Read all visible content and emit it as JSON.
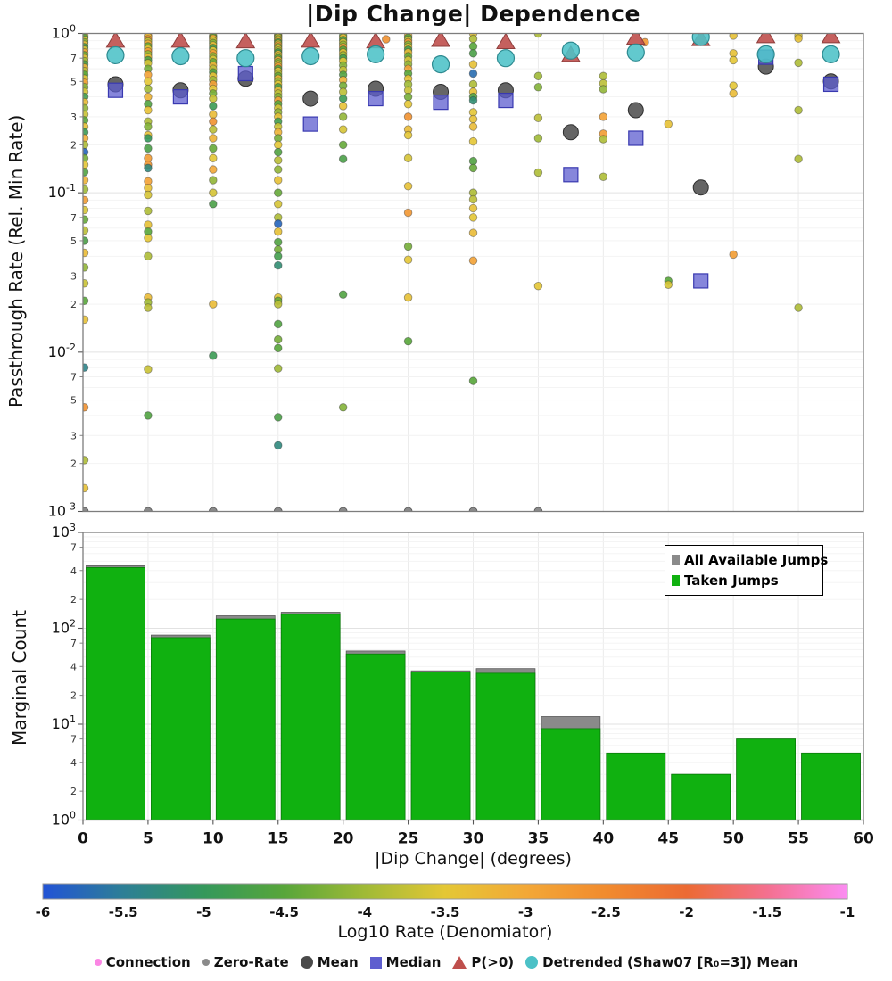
{
  "title": "|Dip Change| Dependence",
  "top_panel": {
    "ylabel": "Passthrough Rate (Rel. Min Rate)",
    "yscale": "log",
    "major_exponents": [
      0,
      -1,
      -2,
      -3
    ],
    "minor_digits": [
      7,
      5,
      3,
      2
    ]
  },
  "bottom_panel": {
    "ylabel": "Marginal Count",
    "xlabel": "|Dip Change| (degrees)",
    "yscale": "log",
    "major_exponents": [
      3,
      2,
      1,
      0
    ],
    "minor_digits": [
      7,
      4,
      2
    ],
    "xticks": [
      0,
      5,
      10,
      15,
      20,
      25,
      30,
      35,
      40,
      45,
      50,
      55,
      60
    ],
    "legend": [
      {
        "label": "All Available Jumps",
        "color": "#8a8a8a"
      },
      {
        "label": "Taken Jumps",
        "color": "#10b110"
      }
    ]
  },
  "colorbar": {
    "label": "Log10 Rate (Denomiator)",
    "min": -6,
    "max": -1,
    "ticks": [
      -6,
      -5.5,
      -5,
      -4.5,
      -4,
      -3.5,
      -3,
      -2.5,
      -2,
      -1.5,
      -1
    ],
    "stops": [
      {
        "v": -6.0,
        "color": "#2253d6"
      },
      {
        "v": -5.5,
        "color": "#2d7f96"
      },
      {
        "v": -5.0,
        "color": "#34985b"
      },
      {
        "v": -4.5,
        "color": "#58a63a"
      },
      {
        "v": -4.0,
        "color": "#a0ba36"
      },
      {
        "v": -3.5,
        "color": "#e4c735"
      },
      {
        "v": -3.0,
        "color": "#f3a837"
      },
      {
        "v": -2.5,
        "color": "#f18b2e"
      },
      {
        "v": -2.0,
        "color": "#ec6a33"
      },
      {
        "v": -1.5,
        "color": "#f4708f"
      },
      {
        "v": -1.0,
        "color": "#fb8cf2"
      }
    ]
  },
  "legend": {
    "items": [
      {
        "label": "Connection",
        "marker": "small-dot",
        "color": "#fb86e4"
      },
      {
        "label": "Zero-Rate",
        "marker": "small-dot",
        "color": "#8a8a8a"
      },
      {
        "label": "Mean",
        "marker": "circle",
        "color": "#4a4a4a"
      },
      {
        "label": "Median",
        "marker": "square",
        "color": "#5e5ecf"
      },
      {
        "label": "P(>0)",
        "marker": "triangle",
        "color": "#bf4f4c"
      },
      {
        "label": "Detrended (Shaw07 [R₀=3]) Mean",
        "marker": "circle",
        "color": "#4cc1c7"
      }
    ]
  },
  "chart_data": [
    {
      "type": "scatter",
      "title": "|Dip Change| Dependence",
      "xlabel": "|Dip Change| (degrees)",
      "ylabel": "Passthrough Rate (Rel. Min Rate)",
      "xlim": [
        0,
        60
      ],
      "ylim": [
        0.001,
        1.0
      ],
      "yscale": "log",
      "grid": true,
      "marker_colors": {
        "mean": "#4a4a4a",
        "median": "#5e5ecf",
        "p_gt0": "#bf4f4c",
        "detrended": "#4cc1c7",
        "zero_rate": "#8a8a8a"
      },
      "strips": [
        {
          "x": 0,
          "values": [
            0.97,
            0.94,
            0.91,
            0.88,
            0.85,
            0.82,
            0.79,
            0.76,
            0.73,
            0.7,
            0.67,
            0.64,
            0.61,
            0.58,
            0.55,
            0.52,
            0.49,
            0.46,
            0.43,
            0.4,
            0.37,
            0.34,
            0.31,
            0.285,
            0.26,
            0.24,
            0.22,
            0.2,
            0.18,
            0.165,
            0.15,
            0.135,
            0.12,
            0.105,
            0.09,
            0.078,
            0.068,
            0.058,
            0.05,
            0.042,
            0.034,
            0.027,
            0.021,
            0.016,
            0.008,
            0.0045,
            0.0021,
            0.0014
          ],
          "log10_rates": [
            -3.0,
            -4.6,
            -3.5,
            -4.2,
            -3.3,
            -4.8,
            -3.6,
            -2.9,
            -4.4,
            -3.4,
            -4.0,
            -4.7,
            -3.2,
            -3.8,
            -4.5,
            -3.5,
            -2.9,
            -4.2,
            -3.6,
            -4.8,
            -3.3,
            -4.1,
            -3.7,
            -4.5,
            -3.4,
            -4.9,
            -3.1,
            -3.9,
            -5.8,
            -4.3,
            -3.5,
            -4.6,
            -3.2,
            -4.0,
            -2.8,
            -3.6,
            -4.4,
            -3.8,
            -4.7,
            -3.3,
            -4.1,
            -3.7,
            -4.5,
            -3.4,
            -5.4,
            -2.6,
            -3.9,
            -3.4
          ]
        },
        {
          "x": 5,
          "values": [
            0.97,
            0.95,
            0.92,
            0.89,
            0.86,
            0.83,
            0.8,
            0.77,
            0.74,
            0.71,
            0.68,
            0.65,
            0.6,
            0.55,
            0.5,
            0.45,
            0.4,
            0.36,
            0.33,
            0.28,
            0.26,
            0.23,
            0.22,
            0.19,
            0.165,
            0.15,
            0.143,
            0.118,
            0.107,
            0.097,
            0.077,
            0.063,
            0.057,
            0.052,
            0.04,
            0.022,
            0.0205,
            0.019,
            0.0078,
            0.004
          ],
          "log10_rates": [
            -2.9,
            -3.3,
            -2.6,
            -3.8,
            -3.1,
            -4.4,
            -3.5,
            -2.8,
            -4.1,
            -3.3,
            -4.7,
            -3.6,
            -4.3,
            -2.9,
            -3.5,
            -4.0,
            -3.2,
            -4.6,
            -3.4,
            -3.9,
            -4.2,
            -3.4,
            -5.0,
            -4.7,
            -2.8,
            -2.7,
            -5.3,
            -2.9,
            -3.4,
            -3.6,
            -3.9,
            -3.4,
            -4.5,
            -3.5,
            -3.9,
            -3.3,
            -4.0,
            -3.8,
            -3.7,
            -4.6
          ]
        },
        {
          "x": 10,
          "values": [
            0.97,
            0.95,
            0.93,
            0.9,
            0.87,
            0.84,
            0.81,
            0.78,
            0.75,
            0.72,
            0.69,
            0.66,
            0.63,
            0.6,
            0.57,
            0.54,
            0.51,
            0.48,
            0.45,
            0.42,
            0.39,
            0.35,
            0.31,
            0.28,
            0.25,
            0.22,
            0.19,
            0.165,
            0.14,
            0.12,
            0.1,
            0.085,
            0.02,
            0.0095
          ],
          "log10_rates": [
            -3.4,
            -4.5,
            -3.0,
            -3.7,
            -4.2,
            -3.3,
            -4.8,
            -3.5,
            -2.9,
            -4.1,
            -3.6,
            -4.4,
            -3.2,
            -3.8,
            -4.6,
            -3.4,
            -4.0,
            -2.8,
            -3.5,
            -4.3,
            -3.7,
            -4.9,
            -3.3,
            -2.6,
            -3.8,
            -3.2,
            -4.4,
            -3.5,
            -3.0,
            -4.1,
            -3.6,
            -4.7,
            -3.3,
            -4.9
          ]
        },
        {
          "x": 15,
          "values": [
            0.98,
            0.96,
            0.94,
            0.92,
            0.9,
            0.88,
            0.86,
            0.84,
            0.82,
            0.8,
            0.78,
            0.76,
            0.74,
            0.72,
            0.7,
            0.68,
            0.66,
            0.64,
            0.62,
            0.6,
            0.58,
            0.56,
            0.54,
            0.52,
            0.5,
            0.48,
            0.46,
            0.44,
            0.42,
            0.4,
            0.38,
            0.36,
            0.34,
            0.32,
            0.3,
            0.28,
            0.26,
            0.24,
            0.22,
            0.2,
            0.18,
            0.16,
            0.14,
            0.12,
            0.1,
            0.085,
            0.07,
            0.064,
            0.057,
            0.049,
            0.044,
            0.04,
            0.035,
            0.022,
            0.021,
            0.02,
            0.015,
            0.012,
            0.0106,
            0.0079,
            0.0039,
            0.0026
          ],
          "log10_rates": [
            -2.6,
            -4.4,
            -3.5,
            -4.1,
            -3.2,
            -4.7,
            -3.6,
            -2.9,
            -4.3,
            -3.4,
            -4.0,
            -4.8,
            -3.3,
            -3.7,
            -4.5,
            -3.1,
            -4.2,
            -3.6,
            -2.8,
            -4.6,
            -3.4,
            -3.9,
            -4.4,
            -3.2,
            -4.0,
            -3.5,
            -4.7,
            -3.3,
            -3.8,
            -4.2,
            -2.9,
            -4.5,
            -3.6,
            -4.1,
            -3.4,
            -4.8,
            -3.7,
            -3.2,
            -4.3,
            -3.5,
            -4.6,
            -3.8,
            -4.1,
            -3.4,
            -4.4,
            -3.6,
            -3.9,
            -5.8,
            -3.4,
            -4.6,
            -4.3,
            -4.8,
            -5.2,
            -3.5,
            -4.4,
            -3.8,
            -4.6,
            -4.3,
            -4.5,
            -4.0,
            -4.7,
            -5.3
          ]
        },
        {
          "x": 20,
          "values": [
            0.97,
            0.94,
            0.91,
            0.88,
            0.85,
            0.82,
            0.79,
            0.76,
            0.73,
            0.7,
            0.67,
            0.63,
            0.59,
            0.55,
            0.51,
            0.47,
            0.43,
            0.39,
            0.35,
            0.3,
            0.25,
            0.2,
            0.163,
            0.023,
            0.0045
          ],
          "log10_rates": [
            -4.4,
            -3.3,
            -4.7,
            -3.6,
            -4.1,
            -2.9,
            -4.5,
            -3.4,
            -4.0,
            -4.8,
            -3.5,
            -4.2,
            -3.7,
            -4.6,
            -3.2,
            -4.3,
            -3.8,
            -4.9,
            -3.4,
            -4.1,
            -3.6,
            -4.4,
            -4.7,
            -4.6,
            -4.2
          ]
        },
        {
          "x": 25,
          "values": [
            0.97,
            0.94,
            0.91,
            0.88,
            0.85,
            0.82,
            0.79,
            0.76,
            0.72,
            0.68,
            0.64,
            0.6,
            0.56,
            0.52,
            0.48,
            0.44,
            0.4,
            0.36,
            0.3,
            0.25,
            0.23,
            0.165,
            0.11,
            0.075,
            0.046,
            0.038,
            0.022,
            0.0117
          ],
          "log10_rates": [
            -3.2,
            -4.6,
            -3.7,
            -2.8,
            -4.2,
            -3.5,
            -4.8,
            -3.3,
            -4.4,
            -3.6,
            -4.1,
            -2.9,
            -4.5,
            -3.4,
            -4.0,
            -3.7,
            -4.3,
            -3.5,
            -2.6,
            -3.3,
            -3.5,
            -3.6,
            -3.4,
            -2.7,
            -4.3,
            -3.5,
            -3.4,
            -4.5
          ]
        },
        {
          "x": 30,
          "values": [
            1.0,
            0.925,
            0.83,
            0.75,
            0.64,
            0.56,
            0.48,
            0.43,
            0.4,
            0.38,
            0.32,
            0.29,
            0.26,
            0.21,
            0.158,
            0.143,
            0.1,
            0.091,
            0.08,
            0.07,
            0.056,
            0.0375,
            0.0066
          ],
          "log10_rates": [
            -3.4,
            -3.9,
            -4.5,
            -4.7,
            -3.4,
            -5.7,
            -3.9,
            -3.4,
            -4.6,
            -5.2,
            -3.5,
            -3.4,
            -3.3,
            -3.5,
            -4.6,
            -4.4,
            -3.9,
            -3.8,
            -3.4,
            -3.5,
            -3.3,
            -2.9,
            -4.5
          ]
        },
        {
          "x": 35,
          "values": [
            1.0,
            0.54,
            0.46,
            0.295,
            0.22,
            0.134,
            0.026
          ],
          "log10_rates": [
            -3.9,
            -4.0,
            -4.2,
            -3.8,
            -4.0,
            -3.9,
            -3.5
          ]
        },
        {
          "x": 40,
          "values": [
            0.54,
            0.486,
            0.447,
            0.3,
            0.235,
            0.217,
            0.126
          ],
          "log10_rates": [
            -3.9,
            -3.8,
            -4.1,
            -2.9,
            -2.8,
            -3.9,
            -3.9
          ]
        },
        {
          "x": 45,
          "values": [
            0.27,
            0.028,
            0.0265
          ],
          "log10_rates": [
            -3.4,
            -4.5,
            -3.6
          ]
        },
        {
          "x": 50,
          "values": [
            0.97,
            0.75,
            0.68,
            0.47,
            0.42,
            0.041
          ],
          "log10_rates": [
            -3.4,
            -3.4,
            -3.5,
            -3.5,
            -3.3,
            -2.8
          ]
        },
        {
          "x": 55,
          "values": [
            0.97,
            0.93,
            0.655,
            0.33,
            0.163,
            0.019
          ],
          "log10_rates": [
            -3.6,
            -3.4,
            -3.9,
            -3.9,
            -3.9,
            -3.9
          ]
        }
      ],
      "extra_points": [
        [
          23.3,
          0.92,
          -2.6
        ],
        [
          43.2,
          0.88,
          -2.7
        ]
      ],
      "zero_rate_x": [
        0,
        5,
        10,
        15,
        20,
        25,
        30,
        35
      ],
      "bin_stats": {
        "centers": [
          2.5,
          7.5,
          12.5,
          17.5,
          22.5,
          27.5,
          32.5,
          37.5,
          42.5,
          47.5,
          52.5,
          57.5
        ],
        "mean": [
          0.48,
          0.44,
          0.52,
          0.39,
          0.45,
          0.43,
          0.44,
          0.24,
          0.33,
          0.108,
          0.62,
          0.5
        ],
        "median": [
          0.44,
          0.4,
          0.56,
          0.27,
          0.39,
          0.37,
          0.38,
          0.13,
          0.22,
          0.028,
          0.71,
          0.48
        ],
        "p_gt0": [
          0.91,
          0.91,
          0.9,
          0.91,
          0.9,
          0.92,
          0.89,
          0.74,
          0.95,
          0.93,
          0.97,
          0.97
        ],
        "detrended_mean": [
          0.73,
          0.72,
          0.7,
          0.72,
          0.74,
          0.64,
          0.7,
          0.78,
          0.76,
          0.95,
          0.74,
          0.74
        ]
      }
    },
    {
      "type": "bar",
      "ylabel": "Marginal Count",
      "xlabel": "|Dip Change| (degrees)",
      "yscale": "log",
      "ylim": [
        1,
        1000
      ],
      "bin_edges": [
        0,
        5,
        10,
        15,
        20,
        25,
        30,
        35,
        40,
        45,
        50,
        55,
        60
      ],
      "series": [
        {
          "name": "All Available Jumps",
          "color": "#8a8a8a",
          "values": [
            450,
            85,
            135,
            147,
            58,
            36,
            38,
            12,
            5,
            3,
            7,
            5
          ]
        },
        {
          "name": "Taken Jumps",
          "color": "#10b110",
          "values": [
            430,
            80,
            125,
            140,
            54,
            35,
            34,
            9,
            5,
            3,
            7,
            5
          ]
        }
      ],
      "legend_position": "upper right"
    }
  ]
}
